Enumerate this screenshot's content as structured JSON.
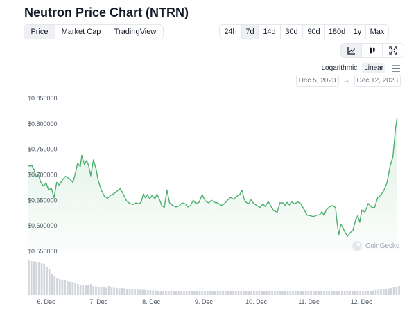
{
  "title": "Neutron Price Chart (NTRN)",
  "view_tabs": [
    {
      "label": "Price",
      "active": true
    },
    {
      "label": "Market Cap",
      "active": false
    },
    {
      "label": "TradingView",
      "active": false
    }
  ],
  "range_tabs": [
    {
      "label": "24h",
      "active": false
    },
    {
      "label": "7d",
      "active": true
    },
    {
      "label": "14d",
      "active": false
    },
    {
      "label": "30d",
      "active": false
    },
    {
      "label": "90d",
      "active": false
    },
    {
      "label": "180d",
      "active": false
    },
    {
      "label": "1y",
      "active": false
    },
    {
      "label": "Max",
      "active": false
    }
  ],
  "chart_type_icons": [
    "line-chart-icon",
    "candlestick-icon",
    "fullscreen-icon"
  ],
  "scale": {
    "log_label": "Logarithmic",
    "linear_label": "Linear",
    "active": "Linear"
  },
  "date_range": {
    "from": "Dec 5, 2023",
    "arrow": "→",
    "to": "Dec 12, 2023"
  },
  "watermark": "CoinGecko",
  "colors": {
    "line": "#4caf6f",
    "area": "#e8f5ea",
    "volume": "#d1d5db",
    "active_bg": "#eef0f3"
  },
  "chart_data": {
    "type": "line",
    "x_start_label": "Dec 5, 2023",
    "yticks": [
      "$0.850000",
      "$0.800000",
      "$0.750000",
      "$0.700000",
      "$0.650000",
      "$0.600000",
      "$0.550000"
    ],
    "ytick_values": [
      0.85,
      0.8,
      0.75,
      0.7,
      0.65,
      0.6,
      0.55
    ],
    "ylim": [
      0.55,
      0.85
    ],
    "xticks": [
      "6. Dec",
      "7. Dec",
      "8. Dec",
      "9. Dec",
      "10. Dec",
      "11. Dec",
      "12. Dec"
    ],
    "xtick_values": [
      0.35,
      1.35,
      2.35,
      3.35,
      4.35,
      5.35,
      6.35
    ],
    "xlim": [
      0,
      7.1
    ],
    "grid": false,
    "series": [
      {
        "values": [
          [
            0.0,
            0.719
          ],
          [
            0.04,
            0.717
          ],
          [
            0.08,
            0.718
          ],
          [
            0.12,
            0.71
          ],
          [
            0.16,
            0.696
          ],
          [
            0.2,
            0.701
          ],
          [
            0.25,
            0.685
          ],
          [
            0.3,
            0.678
          ],
          [
            0.35,
            0.684
          ],
          [
            0.4,
            0.67
          ],
          [
            0.45,
            0.674
          ],
          [
            0.5,
            0.655
          ],
          [
            0.55,
            0.685
          ],
          [
            0.6,
            0.68
          ],
          [
            0.66,
            0.69
          ],
          [
            0.72,
            0.697
          ],
          [
            0.8,
            0.692
          ],
          [
            0.86,
            0.685
          ],
          [
            0.9,
            0.7
          ],
          [
            0.95,
            0.723
          ],
          [
            1.0,
            0.716
          ],
          [
            1.03,
            0.738
          ],
          [
            1.08,
            0.72
          ],
          [
            1.12,
            0.728
          ],
          [
            1.16,
            0.718
          ],
          [
            1.2,
            0.698
          ],
          [
            1.25,
            0.729
          ],
          [
            1.3,
            0.712
          ],
          [
            1.34,
            0.69
          ],
          [
            1.4,
            0.67
          ],
          [
            1.46,
            0.658
          ],
          [
            1.52,
            0.654
          ],
          [
            1.58,
            0.66
          ],
          [
            1.64,
            0.663
          ],
          [
            1.7,
            0.668
          ],
          [
            1.76,
            0.673
          ],
          [
            1.82,
            0.662
          ],
          [
            1.88,
            0.649
          ],
          [
            1.94,
            0.644
          ],
          [
            2.0,
            0.642
          ],
          [
            2.06,
            0.645
          ],
          [
            2.12,
            0.643
          ],
          [
            2.16,
            0.647
          ],
          [
            2.2,
            0.662
          ],
          [
            2.24,
            0.655
          ],
          [
            2.28,
            0.661
          ],
          [
            2.32,
            0.653
          ],
          [
            2.37,
            0.66
          ],
          [
            2.42,
            0.653
          ],
          [
            2.46,
            0.662
          ],
          [
            2.5,
            0.654
          ],
          [
            2.55,
            0.64
          ],
          [
            2.6,
            0.636
          ],
          [
            2.65,
            0.67
          ],
          [
            2.7,
            0.645
          ],
          [
            2.76,
            0.64
          ],
          [
            2.82,
            0.637
          ],
          [
            2.88,
            0.639
          ],
          [
            2.94,
            0.645
          ],
          [
            3.0,
            0.643
          ],
          [
            3.05,
            0.637
          ],
          [
            3.1,
            0.64
          ],
          [
            3.15,
            0.65
          ],
          [
            3.2,
            0.644
          ],
          [
            3.26,
            0.646
          ],
          [
            3.32,
            0.661
          ],
          [
            3.38,
            0.649
          ],
          [
            3.44,
            0.645
          ],
          [
            3.5,
            0.65
          ],
          [
            3.56,
            0.646
          ],
          [
            3.62,
            0.645
          ],
          [
            3.68,
            0.64
          ],
          [
            3.74,
            0.643
          ],
          [
            3.8,
            0.65
          ],
          [
            3.86,
            0.656
          ],
          [
            3.92,
            0.652
          ],
          [
            3.98,
            0.658
          ],
          [
            4.04,
            0.662
          ],
          [
            4.08,
            0.67
          ],
          [
            4.12,
            0.652
          ],
          [
            4.16,
            0.646
          ],
          [
            4.2,
            0.643
          ],
          [
            4.25,
            0.651
          ],
          [
            4.3,
            0.644
          ],
          [
            4.36,
            0.64
          ],
          [
            4.42,
            0.636
          ],
          [
            4.48,
            0.643
          ],
          [
            4.52,
            0.638
          ],
          [
            4.58,
            0.648
          ],
          [
            4.62,
            0.64
          ],
          [
            4.68,
            0.63
          ],
          [
            4.75,
            0.627
          ],
          [
            4.8,
            0.645
          ],
          [
            4.86,
            0.645
          ],
          [
            4.9,
            0.64
          ],
          [
            4.94,
            0.646
          ],
          [
            4.98,
            0.641
          ],
          [
            5.02,
            0.647
          ],
          [
            5.08,
            0.643
          ],
          [
            5.14,
            0.647
          ],
          [
            5.2,
            0.643
          ],
          [
            5.26,
            0.632
          ],
          [
            5.32,
            0.621
          ],
          [
            5.38,
            0.62
          ],
          [
            5.44,
            0.618
          ],
          [
            5.5,
            0.621
          ],
          [
            5.56,
            0.622
          ],
          [
            5.6,
            0.628
          ],
          [
            5.64,
            0.62
          ],
          [
            5.68,
            0.631
          ],
          [
            5.74,
            0.637
          ],
          [
            5.8,
            0.64
          ],
          [
            5.86,
            0.636
          ],
          [
            5.88,
            0.613
          ],
          [
            5.92,
            0.582
          ],
          [
            5.96,
            0.603
          ],
          [
            6.0,
            0.596
          ],
          [
            6.04,
            0.587
          ],
          [
            6.09,
            0.58
          ],
          [
            6.14,
            0.587
          ],
          [
            6.19,
            0.591
          ],
          [
            6.24,
            0.611
          ],
          [
            6.28,
            0.62
          ],
          [
            6.32,
            0.607
          ],
          [
            6.36,
            0.631
          ],
          [
            6.42,
            0.627
          ],
          [
            6.48,
            0.644
          ],
          [
            6.54,
            0.637
          ],
          [
            6.6,
            0.635
          ],
          [
            6.66,
            0.655
          ],
          [
            6.72,
            0.66
          ],
          [
            6.78,
            0.67
          ],
          [
            6.84,
            0.685
          ],
          [
            6.9,
            0.718
          ],
          [
            6.95,
            0.735
          ],
          [
            7.0,
            0.79
          ],
          [
            7.03,
            0.812
          ]
        ]
      }
    ],
    "volume_relative": [
      1.0,
      0.98,
      0.97,
      0.96,
      0.94,
      0.92,
      0.88,
      0.82,
      0.76,
      0.6,
      0.55,
      0.48,
      0.46,
      0.44,
      0.42,
      0.4,
      0.38,
      0.36,
      0.34,
      0.32,
      0.3,
      0.3,
      0.29,
      0.28,
      0.32,
      0.26,
      0.25,
      0.24,
      0.23,
      0.22,
      0.21,
      0.26,
      0.22,
      0.21,
      0.2,
      0.19,
      0.2,
      0.19,
      0.18,
      0.17,
      0.17,
      0.16,
      0.16,
      0.15,
      0.15,
      0.15,
      0.14,
      0.14,
      0.13,
      0.13,
      0.12,
      0.12,
      0.12,
      0.11,
      0.11,
      0.11,
      0.1,
      0.1,
      0.1,
      0.1,
      0.1,
      0.1,
      0.1,
      0.1,
      0.1,
      0.1,
      0.1,
      0.1,
      0.1,
      0.1,
      0.1,
      0.1,
      0.1,
      0.1,
      0.1,
      0.1,
      0.1,
      0.1,
      0.1,
      0.1,
      0.1,
      0.1,
      0.1,
      0.1,
      0.1,
      0.1,
      0.1,
      0.1,
      0.1,
      0.1,
      0.1,
      0.1,
      0.1,
      0.1,
      0.1,
      0.1,
      0.1,
      0.1,
      0.1,
      0.1,
      0.1,
      0.1,
      0.1,
      0.1,
      0.1,
      0.1,
      0.1,
      0.1,
      0.1,
      0.1,
      0.1,
      0.1,
      0.1,
      0.1,
      0.1,
      0.1,
      0.1,
      0.1,
      0.1,
      0.1,
      0.1,
      0.1,
      0.1,
      0.1,
      0.1,
      0.1,
      0.1,
      0.1,
      0.1,
      0.1,
      0.11,
      0.12,
      0.12,
      0.13,
      0.14,
      0.15,
      0.16,
      0.17,
      0.18,
      0.19,
      0.2,
      0.22,
      0.24,
      0.26
    ]
  }
}
